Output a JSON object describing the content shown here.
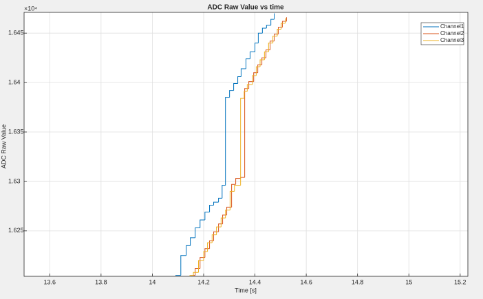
{
  "chart_data": {
    "type": "step-line",
    "title": "ADC Raw Value vs time",
    "xlabel": "Time [s]",
    "ylabel": "ADC Raw Value",
    "y_multiplier": "×10⁴",
    "xlim": [
      13.5,
      15.23
    ],
    "xticks": [
      13.6,
      13.8,
      14,
      14.2,
      14.4,
      14.6,
      14.8,
      15,
      15.2
    ],
    "ylim": [
      16204,
      16471
    ],
    "yticks": [
      {
        "value": 16250,
        "label": "1.625"
      },
      {
        "value": 16300,
        "label": "1.63"
      },
      {
        "value": 16350,
        "label": "1.635"
      },
      {
        "value": 16400,
        "label": "1.64"
      },
      {
        "value": 16450,
        "label": "1.645"
      }
    ],
    "grid": true,
    "legend": "northeast",
    "series": [
      {
        "name": "Channel1",
        "color": "#0072bd",
        "x": [
          14.09,
          14.111,
          14.132,
          14.148,
          14.167,
          14.186,
          14.205,
          14.223,
          14.239,
          14.258,
          14.272,
          14.285,
          14.301,
          14.317,
          14.333,
          14.346,
          14.365,
          14.381,
          14.4,
          14.413,
          14.429,
          14.445,
          14.462,
          14.475
        ],
        "values": [
          16205,
          16225,
          16235,
          16243,
          16253,
          16261,
          16269,
          16276,
          16279,
          16283,
          16296,
          16385,
          16392,
          16399,
          16406,
          16414,
          16424,
          16431,
          16440,
          16450,
          16455,
          16458,
          16464,
          16470
        ]
      },
      {
        "name": "Channel2",
        "color": "#d95319",
        "x": [
          14.15,
          14.167,
          14.186,
          14.205,
          14.223,
          14.239,
          14.258,
          14.274,
          14.29,
          14.309,
          14.325,
          14.344,
          14.36,
          14.376,
          14.395,
          14.411,
          14.427,
          14.443,
          14.459,
          14.475,
          14.491,
          14.507,
          14.523
        ],
        "values": [
          16205,
          16212,
          16223,
          16232,
          16240,
          16249,
          16257,
          16266,
          16274,
          16297,
          16303,
          16304,
          16394,
          16401,
          16410,
          16418,
          16425,
          16433,
          16442,
          16449,
          16456,
          16462,
          16466
        ]
      },
      {
        "name": "Channel3",
        "color": "#edb120",
        "x": [
          14.145,
          14.16,
          14.18,
          14.2,
          14.215,
          14.233,
          14.25,
          14.268,
          14.285,
          14.303,
          14.32,
          14.344,
          14.358,
          14.37,
          14.39,
          14.405,
          14.42,
          14.437,
          14.453,
          14.47,
          14.487,
          14.502,
          14.518
        ],
        "values": [
          16205,
          16208,
          16220,
          16229,
          16238,
          16246,
          16254,
          16263,
          16271,
          16290,
          16296,
          16384,
          16391,
          16398,
          16407,
          16416,
          16423,
          16431,
          16440,
          16447,
          16454,
          16460,
          16465
        ]
      }
    ]
  }
}
